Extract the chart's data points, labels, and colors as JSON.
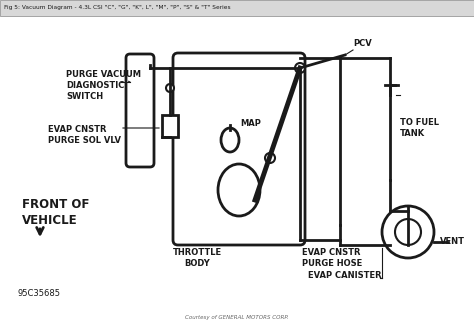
{
  "title": "Fig 5: Vacuum Diagram - 4.3L CSI \"C\", \"G\", \"K\", L\", \"M\", \"P\", \"S\" & \"T\" Series",
  "bg_color": "#ffffff",
  "line_color": "#1a1a1a",
  "text_color": "#1a1a1a",
  "footer": "Courtesy of GENERAL MOTORS CORP.",
  "code": "95C35685",
  "labels": {
    "purge_vacuum": "PURGE VACUUM\nDIAGNOSTIC\nSWITCH",
    "evap_cnstr": "EVAP CNSTR\nPURGE SOL VLV",
    "map": "MAP",
    "pcv": "PCV",
    "throttle_body": "THROTTLE\nBODY",
    "evap_cnstr_hose": "EVAP CNSTR\nPURGE HOSE",
    "evap_canister": "EVAP CANISTER",
    "to_fuel_tank": "TO FUEL\nTANK",
    "vent": "VENT",
    "front_vehicle": "FRONT OF\nVEHICLE"
  }
}
